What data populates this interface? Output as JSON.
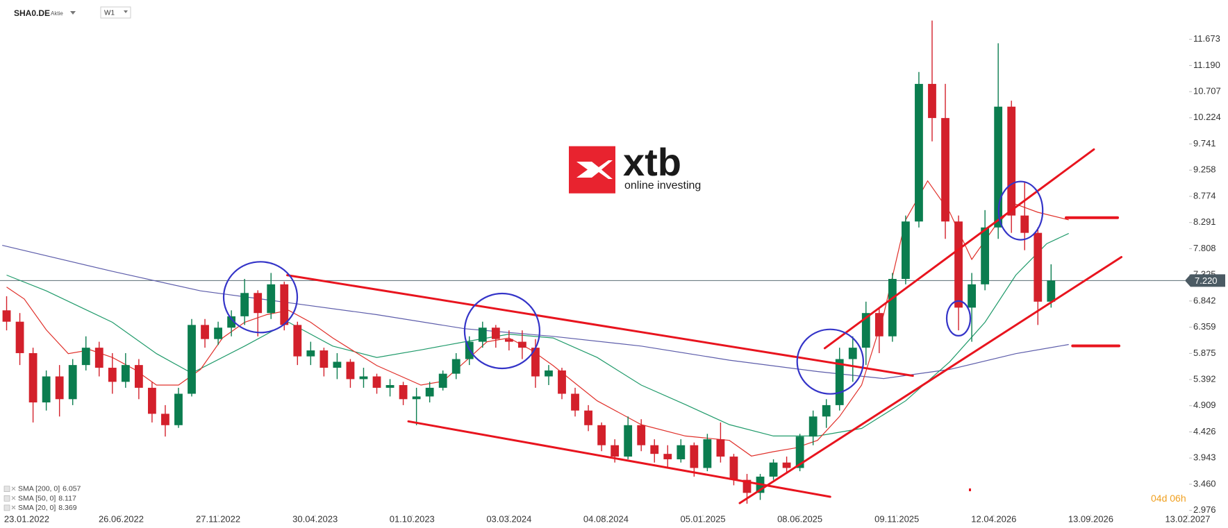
{
  "header": {
    "symbol": "SHA0.DE",
    "asset_type": "Aktie",
    "interval": "W1"
  },
  "logo": {
    "name": "xtb",
    "tagline": "online investing"
  },
  "countdown": "04d 06h",
  "chart_data": {
    "type": "candlestick",
    "x": [
      -4,
      -1,
      2,
      5,
      8,
      11,
      14,
      17,
      20,
      23,
      26,
      29,
      32,
      35,
      38,
      41,
      44,
      47,
      50,
      53,
      56,
      59,
      62,
      65,
      68,
      71,
      74,
      77,
      80,
      83,
      86,
      89,
      92,
      95,
      98,
      101,
      104,
      107,
      110,
      113,
      116,
      119,
      122,
      125,
      128,
      131,
      134,
      137,
      140,
      143,
      146,
      149,
      152,
      155,
      158,
      161,
      164,
      167,
      170,
      173,
      176,
      179,
      182,
      185,
      188,
      191,
      194,
      197,
      200,
      203,
      206,
      209,
      212,
      215,
      218,
      221,
      224,
      227,
      230,
      233
    ],
    "open": [
      6.67,
      6.46,
      5.88,
      4.97,
      5.45,
      5.03,
      5.66,
      5.98,
      5.61,
      5.35,
      5.66,
      5.24,
      4.76,
      4.55,
      5.13,
      6.4,
      6.14,
      6.35,
      6.56,
      6.99,
      6.62,
      7.15,
      6.4,
      5.82,
      5.93,
      5.61,
      5.72,
      5.4,
      5.45,
      5.24,
      5.29,
      5.03,
      5.08,
      5.24,
      5.5,
      5.77,
      6.09,
      6.35,
      6.14,
      6.09,
      5.98,
      5.45,
      5.56,
      5.13,
      4.82,
      4.55,
      4.18,
      3.97,
      4.55,
      4.18,
      4.02,
      3.92,
      4.18,
      3.76,
      4.29,
      3.97,
      3.54,
      3.3,
      3.6,
      3.86,
      3.76,
      4.34,
      4.71,
      4.92,
      5.77,
      5.98,
      6.62,
      6.19,
      7.25,
      8.31,
      10.85,
      10.22,
      8.31,
      6.72,
      7.15,
      8.2,
      10.43,
      8.42,
      8.1,
      6.83
    ],
    "high": [
      6.93,
      6.62,
      5.98,
      5.56,
      5.66,
      5.77,
      6.19,
      6.09,
      5.88,
      5.88,
      5.77,
      5.35,
      4.92,
      5.24,
      6.51,
      6.51,
      6.46,
      6.67,
      7.25,
      7.04,
      7.36,
      7.2,
      6.46,
      6.09,
      5.98,
      5.88,
      5.77,
      5.61,
      5.5,
      5.4,
      5.35,
      5.24,
      5.35,
      5.56,
      5.88,
      6.19,
      6.46,
      6.4,
      6.3,
      6.3,
      6.14,
      5.66,
      5.61,
      5.24,
      4.92,
      4.6,
      4.29,
      4.71,
      4.66,
      4.29,
      4.18,
      4.29,
      4.23,
      4.39,
      4.6,
      4.02,
      3.65,
      3.65,
      3.92,
      3.97,
      4.39,
      4.82,
      5.03,
      5.98,
      6.19,
      6.83,
      6.72,
      7.36,
      8.42,
      11.07,
      12.02,
      10.85,
      8.42,
      7.36,
      8.52,
      11.6,
      10.54,
      9.05,
      8.2,
      7.52
    ],
    "low": [
      6.3,
      5.66,
      4.6,
      4.82,
      4.71,
      4.92,
      5.56,
      5.45,
      5.13,
      5.24,
      5.03,
      4.6,
      4.34,
      4.5,
      5.08,
      5.98,
      6.03,
      6.19,
      6.4,
      6.19,
      6.51,
      6.3,
      5.66,
      5.66,
      5.45,
      5.4,
      5.24,
      5.24,
      5.13,
      5.08,
      4.92,
      4.55,
      4.97,
      5.19,
      5.4,
      5.66,
      5.98,
      5.98,
      5.93,
      5.77,
      5.24,
      5.29,
      5.03,
      4.71,
      4.44,
      4.07,
      3.86,
      3.92,
      4.07,
      3.86,
      3.76,
      3.86,
      3.6,
      3.7,
      3.86,
      3.44,
      3.1,
      3.17,
      3.54,
      3.65,
      3.7,
      4.18,
      4.5,
      4.82,
      5.35,
      5.66,
      5.88,
      6.09,
      7.15,
      8.2,
      9.79,
      7.99,
      6.3,
      6.09,
      7.04,
      7.99,
      8.1,
      7.78,
      6.4,
      6.72
    ],
    "close": [
      6.46,
      5.88,
      4.97,
      5.45,
      5.03,
      5.66,
      5.98,
      5.61,
      5.35,
      5.66,
      5.24,
      4.76,
      4.55,
      5.13,
      6.4,
      6.14,
      6.35,
      6.56,
      6.99,
      6.62,
      7.15,
      6.4,
      5.82,
      5.93,
      5.61,
      5.72,
      5.4,
      5.45,
      5.24,
      5.29,
      5.03,
      5.08,
      5.24,
      5.5,
      5.77,
      6.09,
      6.35,
      6.14,
      6.09,
      5.98,
      5.45,
      5.56,
      5.13,
      4.82,
      4.55,
      4.18,
      3.97,
      4.55,
      4.18,
      4.02,
      3.92,
      4.18,
      3.76,
      4.29,
      3.97,
      3.54,
      3.3,
      3.6,
      3.86,
      3.76,
      4.34,
      4.71,
      4.92,
      5.77,
      5.98,
      6.62,
      6.19,
      7.25,
      8.31,
      10.85,
      10.22,
      8.31,
      6.72,
      7.15,
      8.2,
      10.43,
      8.42,
      8.1,
      6.83,
      7.22
    ],
    "colors": {
      "up": "#0b7d4f",
      "down": "#d3202b"
    },
    "xlim": [
      -5.5,
      264
    ],
    "xticks": [
      {
        "value": 0,
        "label": "23.01.2022"
      },
      {
        "value": 22,
        "label": "26.06.2022"
      },
      {
        "value": 44,
        "label": "27.11.2022"
      },
      {
        "value": 66,
        "label": "30.04.2023"
      },
      {
        "value": 88,
        "label": "01.10.2023"
      },
      {
        "value": 110,
        "label": "03.03.2024"
      },
      {
        "value": 132,
        "label": "04.08.2024"
      },
      {
        "value": 154,
        "label": "05.01.2025"
      },
      {
        "value": 176,
        "label": "08.06.2025"
      },
      {
        "value": 198,
        "label": "09.11.2025"
      },
      {
        "value": 220,
        "label": "12.04.2026"
      },
      {
        "value": 242,
        "label": "13.09.2026"
      },
      {
        "value": 264,
        "label": "13.02.2027"
      }
    ],
    "ylim": [
      2.895,
      12.399
    ],
    "yticks": [
      11.673,
      {
        "value": 11.19,
        "label": "11.190"
      },
      10.707,
      10.224,
      9.741,
      9.258,
      8.774,
      8.291,
      7.808,
      7.325,
      6.842,
      6.359,
      5.875,
      5.392,
      4.909,
      4.426,
      3.943,
      {
        "value": 3.46,
        "label": "3.460"
      },
      2.976
    ],
    "last_price": {
      "value": 7.22,
      "label": "7.220"
    },
    "overlays": [
      {
        "name": "SMA [200, 0]",
        "legend_value": 6.057,
        "color": "#5c5caa",
        "x": [
          -5,
          20,
          40,
          60,
          80,
          100,
          120,
          140,
          160,
          180,
          195,
          210,
          225,
          237
        ],
        "values": [
          7.87,
          7.39,
          7.03,
          6.81,
          6.59,
          6.33,
          6.19,
          6.01,
          5.75,
          5.54,
          5.41,
          5.58,
          5.87,
          6.04
        ]
      },
      {
        "name": "SMA [50, 0]",
        "legend_value": 8.117,
        "color": "#1f9a6a",
        "x": [
          -4,
          5,
          20,
          30,
          38,
          50,
          60,
          70,
          80,
          90,
          100,
          110,
          120,
          130,
          140,
          150,
          160,
          170,
          180,
          190,
          200,
          210,
          218,
          225,
          232,
          237
        ],
        "values": [
          7.32,
          7.03,
          6.45,
          5.87,
          5.51,
          6.01,
          6.45,
          6.01,
          5.8,
          5.94,
          6.09,
          6.23,
          6.16,
          5.8,
          5.29,
          4.93,
          4.56,
          4.35,
          4.35,
          4.49,
          5.0,
          5.72,
          6.45,
          7.32,
          7.9,
          8.09
        ]
      },
      {
        "name": "SMA [20, 0]",
        "legend_value": 8.369,
        "color": "#e0302a",
        "x": [
          -4,
          0,
          5,
          10,
          15,
          20,
          25,
          30,
          35,
          40,
          45,
          50,
          55,
          60,
          65,
          70,
          80,
          90,
          95,
          100,
          105,
          110,
          115,
          120,
          130,
          140,
          150,
          160,
          165,
          170,
          175,
          180,
          185,
          190,
          195,
          200,
          205,
          210,
          215,
          220,
          225,
          230,
          237
        ],
        "values": [
          7.1,
          6.88,
          6.31,
          5.87,
          5.94,
          5.8,
          5.58,
          5.29,
          5.29,
          5.58,
          6.16,
          6.45,
          6.59,
          6.67,
          6.45,
          6.16,
          5.65,
          5.29,
          5.36,
          5.72,
          6.09,
          6.16,
          5.94,
          5.65,
          5.0,
          4.56,
          4.35,
          4.27,
          3.98,
          4.06,
          4.13,
          4.27,
          4.71,
          5.29,
          6.59,
          8.34,
          9.06,
          8.48,
          7.61,
          8.19,
          8.63,
          8.48,
          8.34
        ]
      }
    ]
  }
}
